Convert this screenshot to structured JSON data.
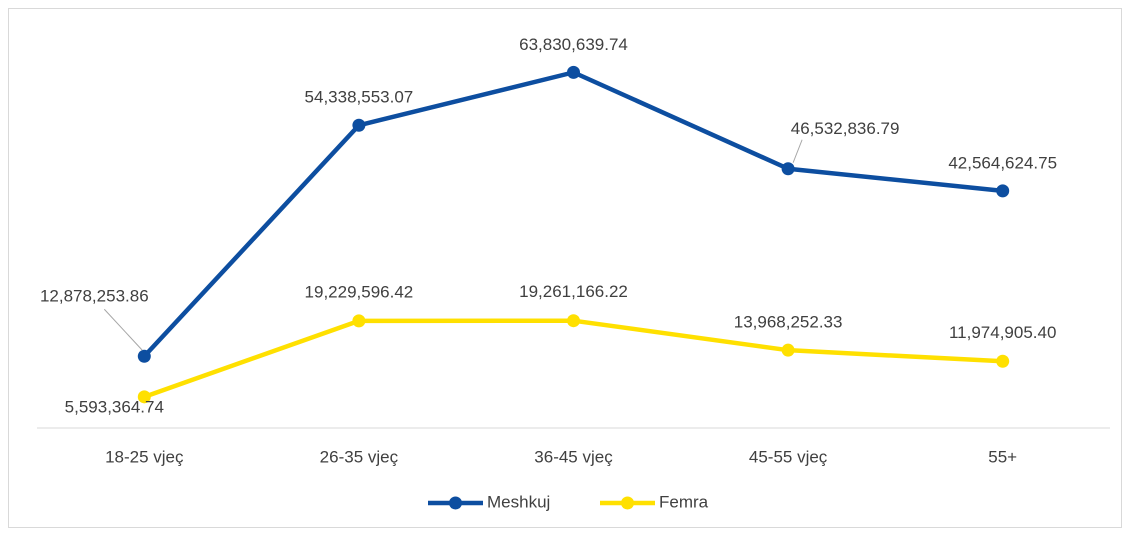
{
  "chart_data": {
    "type": "line",
    "categories": [
      "18-25 vjeç",
      "26-35 vjeç",
      "36-45 vjeç",
      "45-55 vjeç",
      "55+"
    ],
    "series": [
      {
        "name": "Meshkuj",
        "color": "#0d4ea0",
        "values": [
          12878253.86,
          54338553.07,
          63830639.74,
          46532836.79,
          42564624.75
        ],
        "value_labels": [
          "12,878,253.86",
          "54,338,553.07",
          "63,830,639.74",
          "46,532,836.79",
          "42,564,624.75"
        ]
      },
      {
        "name": "Femra",
        "color": "#ffe000",
        "values": [
          5593364.74,
          19229596.42,
          19261166.22,
          13968252.33,
          11974905.4
        ],
        "value_labels": [
          "5,593,364.74",
          "19,229,596.42",
          "19,261,166.22",
          "13,968,252.33",
          "11,974,905.40"
        ]
      }
    ],
    "ylim": [
      0,
      70000000
    ],
    "legend": "bottom"
  }
}
